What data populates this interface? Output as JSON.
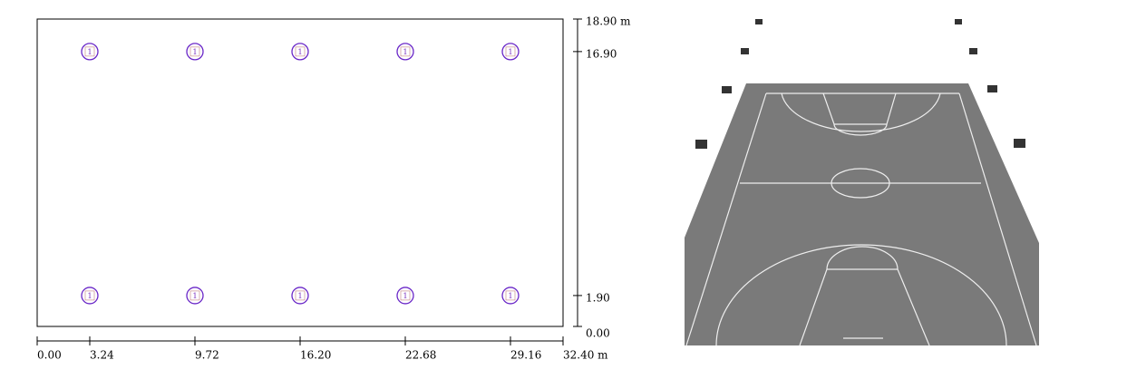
{
  "plan": {
    "xlim": [
      0,
      32.4
    ],
    "ylim": [
      0,
      18.9
    ],
    "xticks": [
      {
        "value": 0,
        "label": "0.00"
      },
      {
        "value": 3.24,
        "label": "3.24"
      },
      {
        "value": 9.72,
        "label": "9.72"
      },
      {
        "value": 16.2,
        "label": "16.20"
      },
      {
        "value": 22.68,
        "label": "22.68"
      },
      {
        "value": 29.16,
        "label": "29.16"
      },
      {
        "value": 32.4,
        "label": "32.40 m"
      }
    ],
    "yticks": [
      {
        "value": 0,
        "label": "0.00"
      },
      {
        "value": 1.9,
        "label": "1.90"
      },
      {
        "value": 16.9,
        "label": "16.90"
      },
      {
        "value": 18.9,
        "label": "18.90 m"
      }
    ],
    "luminaires": [
      {
        "x": 3.24,
        "y": 16.9,
        "label": "1"
      },
      {
        "x": 9.72,
        "y": 16.9,
        "label": "1"
      },
      {
        "x": 16.2,
        "y": 16.9,
        "label": "1"
      },
      {
        "x": 22.68,
        "y": 16.9,
        "label": "1"
      },
      {
        "x": 29.16,
        "y": 16.9,
        "label": "1"
      },
      {
        "x": 3.24,
        "y": 1.9,
        "label": "1"
      },
      {
        "x": 9.72,
        "y": 1.9,
        "label": "1"
      },
      {
        "x": 16.2,
        "y": 1.9,
        "label": "1"
      },
      {
        "x": 22.68,
        "y": 1.9,
        "label": "1"
      },
      {
        "x": 29.16,
        "y": 1.9,
        "label": "1"
      }
    ]
  }
}
